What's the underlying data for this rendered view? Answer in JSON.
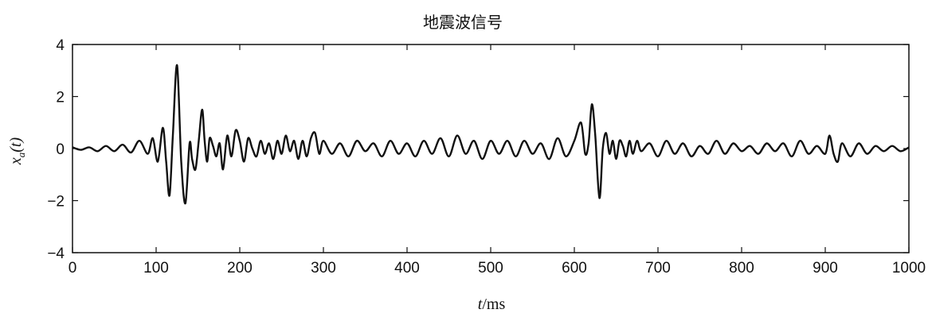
{
  "chart_data": {
    "type": "line",
    "title": "地震波信号",
    "xlabel": "t/ms",
    "ylabel": "x_a(t)",
    "xlim": [
      0,
      1000
    ],
    "ylim": [
      -4,
      4
    ],
    "xticks": [
      0,
      100,
      200,
      300,
      400,
      500,
      600,
      700,
      800,
      900,
      1000
    ],
    "yticks": [
      -4,
      -2,
      0,
      2,
      4
    ],
    "ytick_labels": [
      "−4",
      "−2",
      "0",
      "2",
      "4"
    ],
    "grid": false,
    "line_color": "#111111",
    "series": [
      {
        "x": [
          0,
          10,
          20,
          30,
          40,
          50,
          60,
          70,
          80,
          90,
          96,
          102,
          108,
          112,
          116,
          120,
          125,
          130,
          135,
          140,
          143,
          147,
          151,
          155,
          158,
          161,
          164,
          168,
          172,
          176,
          180,
          185,
          190,
          195,
          200,
          205,
          210,
          215,
          220,
          225,
          230,
          235,
          240,
          245,
          250,
          255,
          260,
          265,
          270,
          275,
          280,
          285,
          290,
          295,
          300,
          310,
          320,
          330,
          340,
          350,
          360,
          370,
          380,
          390,
          400,
          410,
          420,
          430,
          440,
          450,
          460,
          470,
          480,
          490,
          500,
          510,
          520,
          530,
          540,
          550,
          560,
          570,
          580,
          590,
          600,
          608,
          613,
          617,
          621,
          625,
          630,
          634,
          638,
          642,
          646,
          650,
          654,
          658,
          662,
          666,
          670,
          675,
          680,
          690,
          700,
          710,
          720,
          730,
          740,
          750,
          760,
          770,
          780,
          790,
          800,
          810,
          820,
          830,
          840,
          850,
          860,
          870,
          880,
          890,
          900,
          905,
          910,
          915,
          920,
          930,
          940,
          950,
          960,
          970,
          980,
          990,
          1000
        ],
        "y": [
          0.05,
          -0.05,
          0.05,
          -0.1,
          0.1,
          -0.1,
          0.15,
          -0.15,
          0.3,
          -0.2,
          0.4,
          -0.5,
          0.8,
          -0.5,
          -1.8,
          0.5,
          3.2,
          -0.5,
          -2.1,
          0.2,
          -0.4,
          -0.8,
          0.3,
          1.5,
          0.3,
          -0.5,
          0.4,
          0.1,
          -0.3,
          0.2,
          -0.8,
          0.5,
          -0.3,
          0.7,
          0.3,
          -0.5,
          0.4,
          0.0,
          -0.3,
          0.3,
          -0.2,
          0.2,
          -0.4,
          0.3,
          -0.2,
          0.5,
          -0.1,
          0.3,
          -0.4,
          0.3,
          -0.3,
          0.4,
          0.6,
          -0.2,
          0.3,
          -0.2,
          0.2,
          -0.3,
          0.3,
          -0.1,
          0.2,
          -0.3,
          0.3,
          -0.2,
          0.2,
          -0.3,
          0.3,
          -0.2,
          0.4,
          -0.3,
          0.5,
          -0.2,
          0.3,
          -0.4,
          0.3,
          -0.2,
          0.3,
          -0.3,
          0.3,
          -0.2,
          0.2,
          -0.4,
          0.4,
          -0.3,
          0.3,
          1.0,
          -0.2,
          0.2,
          1.7,
          0.5,
          -1.9,
          0.0,
          0.6,
          -0.2,
          0.3,
          -0.4,
          0.3,
          0.1,
          -0.3,
          0.3,
          -0.2,
          0.3,
          -0.1,
          0.2,
          -0.3,
          0.3,
          -0.2,
          0.2,
          -0.3,
          0.1,
          -0.2,
          0.3,
          -0.2,
          0.2,
          -0.1,
          0.1,
          -0.2,
          0.2,
          -0.1,
          0.2,
          -0.3,
          0.3,
          -0.2,
          0.1,
          -0.2,
          0.5,
          -0.2,
          -0.5,
          0.2,
          -0.3,
          0.2,
          -0.2,
          0.1,
          -0.1,
          0.1,
          -0.1,
          0.05
        ]
      }
    ]
  }
}
